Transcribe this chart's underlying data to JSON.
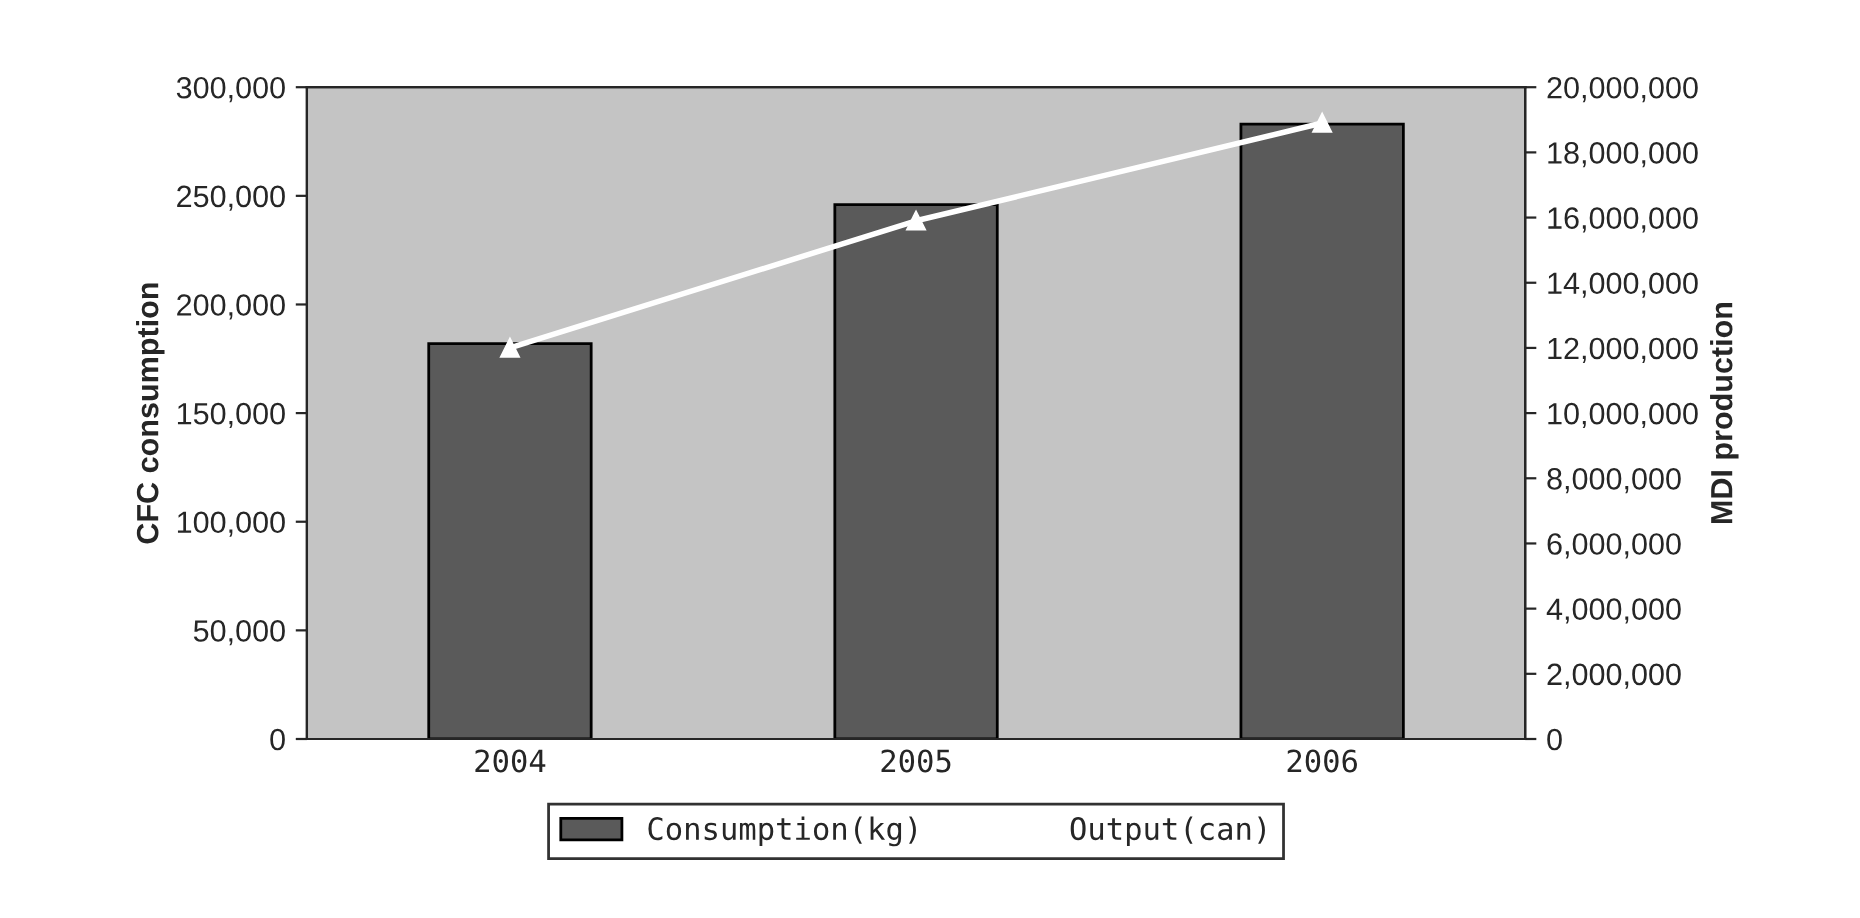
{
  "chart_data": {
    "type": "bar",
    "categories": [
      "2004",
      "2005",
      "2006"
    ],
    "ylabel": "CFC consumption",
    "y2label": "MDI production",
    "series": [
      {
        "name": "Consumption(kg)",
        "color": "#5a5a5a",
        "values": [
          182000,
          246000,
          283000
        ]
      },
      {
        "name": "Output(can)",
        "type": "line",
        "axis": "y2",
        "color": "#ffffff",
        "marker": "triangle",
        "values": [
          12000000,
          15900000,
          18900000
        ]
      }
    ],
    "ylim": [
      0,
      300000
    ],
    "yticks": [
      {
        "value": 0,
        "label": "0"
      },
      {
        "value": 50000,
        "label": "50,000"
      },
      {
        "value": 100000,
        "label": "100,000"
      },
      {
        "value": 150000,
        "label": "150,000"
      },
      {
        "value": 200000,
        "label": "200,000"
      },
      {
        "value": 250000,
        "label": "250,000"
      },
      {
        "value": 300000,
        "label": "300,000"
      }
    ],
    "y2lim": [
      0,
      20000000
    ],
    "y2ticks": [
      {
        "value": 0,
        "label": "0"
      },
      {
        "value": 2000000,
        "label": "2,000,000"
      },
      {
        "value": 4000000,
        "label": "4,000,000"
      },
      {
        "value": 6000000,
        "label": "6,000,000"
      },
      {
        "value": 8000000,
        "label": "8,000,000"
      },
      {
        "value": 10000000,
        "label": "10,000,000"
      },
      {
        "value": 12000000,
        "label": "12,000,000"
      },
      {
        "value": 14000000,
        "label": "14,000,000"
      },
      {
        "value": 16000000,
        "label": "16,000,000"
      },
      {
        "value": 18000000,
        "label": "18,000,000"
      },
      {
        "value": 20000000,
        "label": "20,000,000"
      }
    ],
    "legend": "bottom",
    "grid": false
  }
}
